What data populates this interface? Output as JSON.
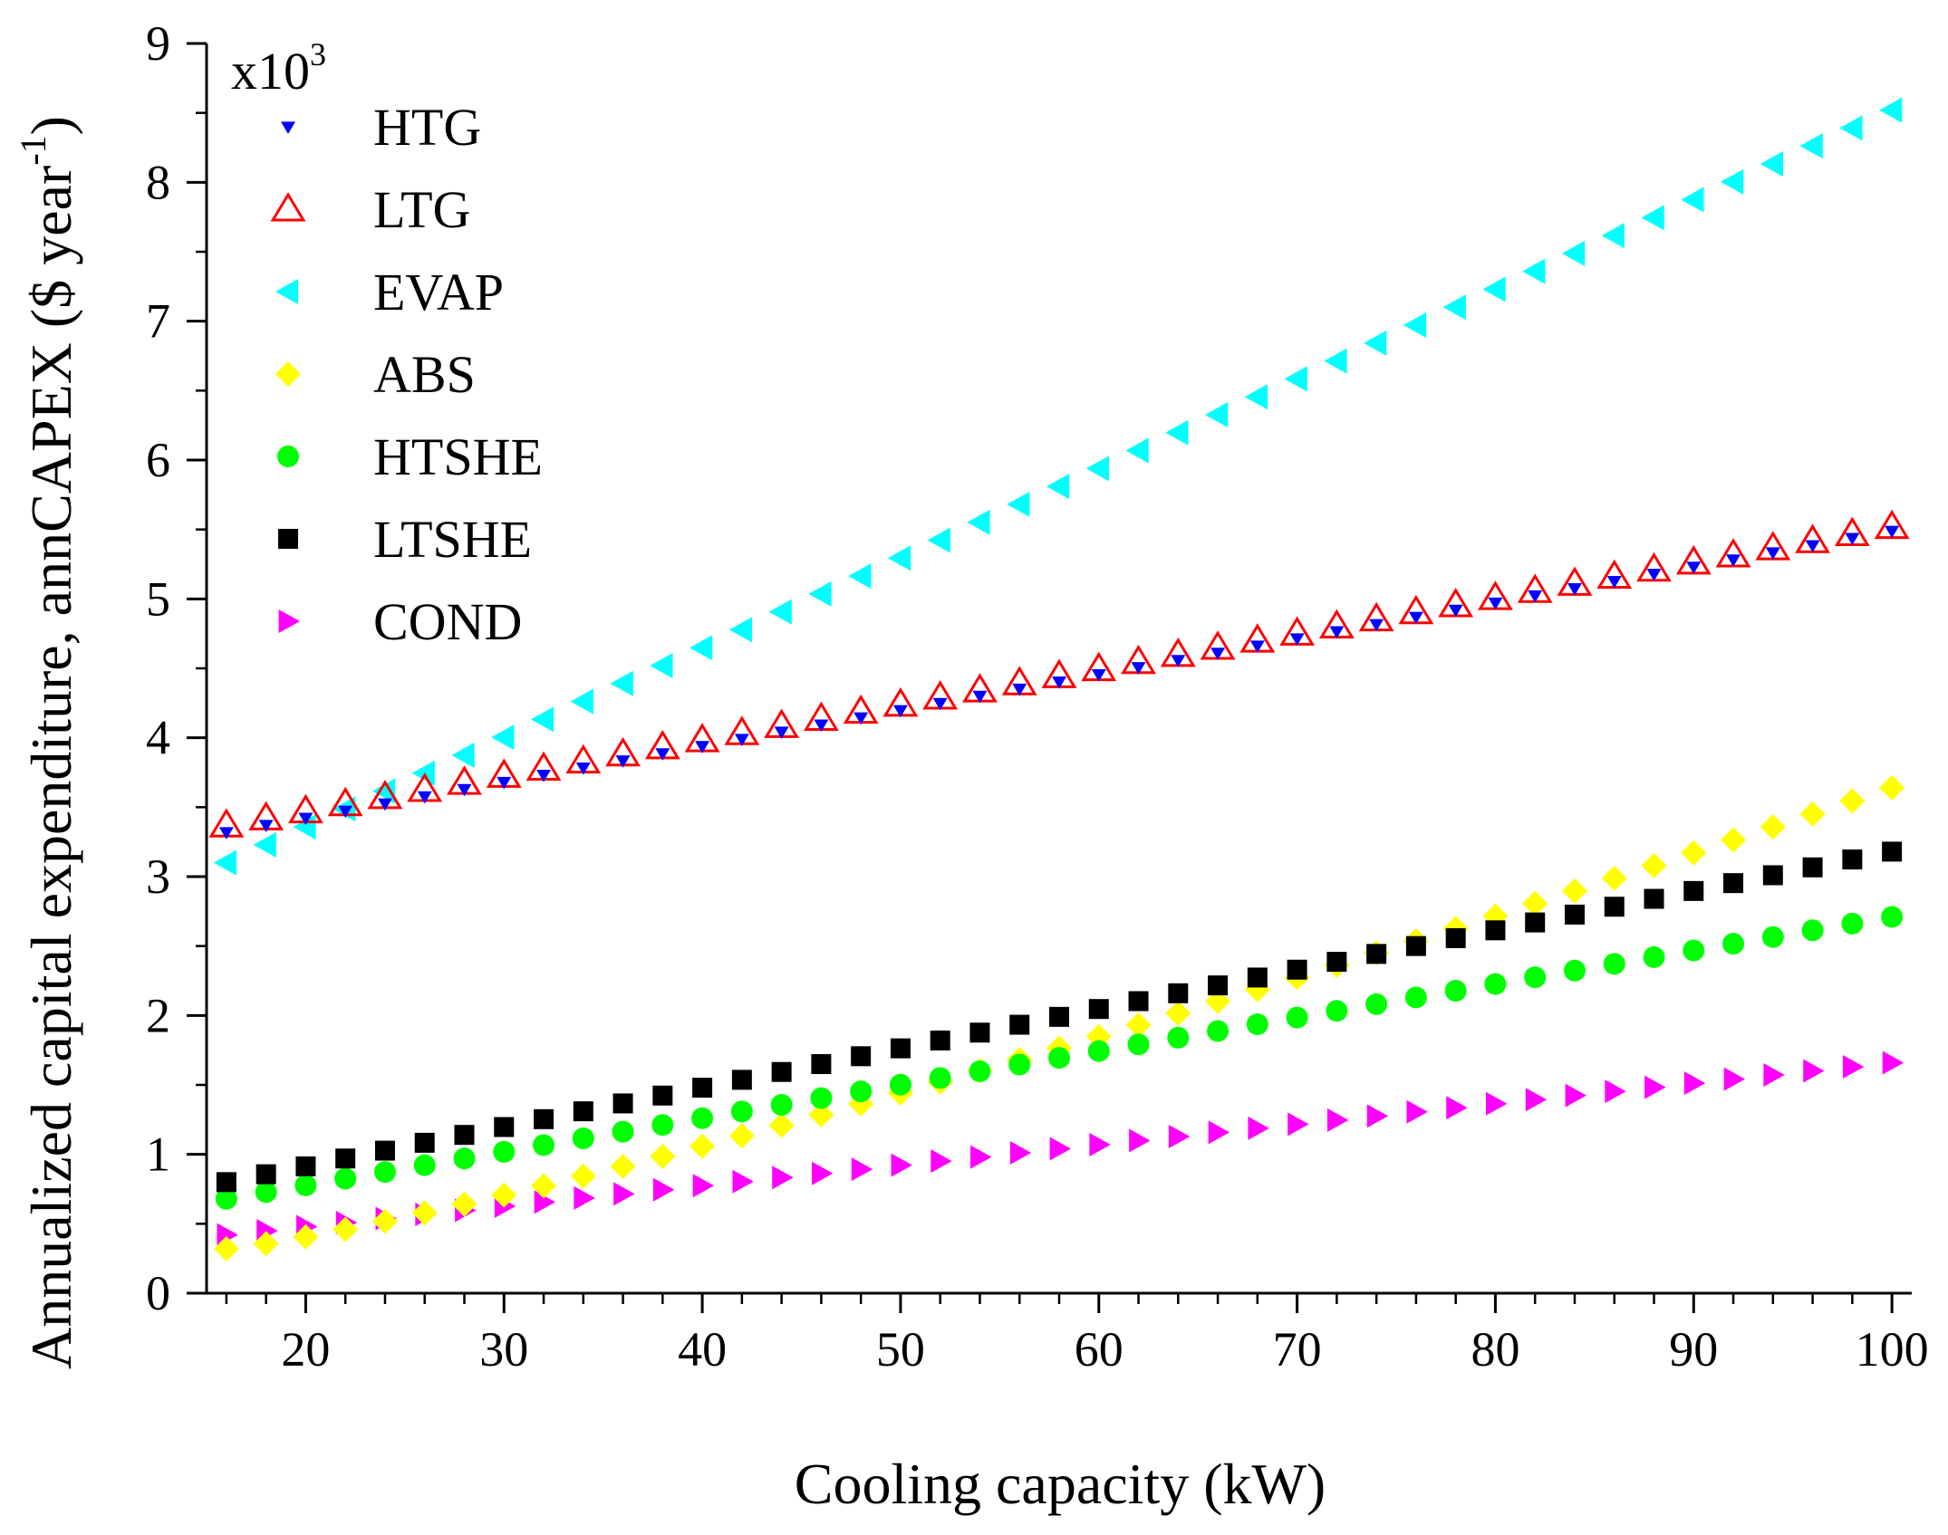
{
  "chart_data": {
    "type": "scatter",
    "title": "",
    "xlabel": "Cooling capacity (kW)",
    "ylabel_main": "Annualized capital expenditure, annCAPEX ($ year",
    "ylabel_sup": "-1",
    "ylabel_close": ")",
    "multiplier_base": "x10",
    "multiplier_exp": "3",
    "xlim": [
      15,
      101
    ],
    "ylim": [
      0,
      9
    ],
    "x_ticks": [
      20,
      30,
      40,
      50,
      60,
      70,
      80,
      90,
      100
    ],
    "y_ticks": [
      0,
      1,
      2,
      3,
      4,
      5,
      6,
      7,
      8,
      9
    ],
    "x": [
      16,
      18,
      20,
      22,
      24,
      26,
      28,
      30,
      32,
      34,
      36,
      38,
      40,
      42,
      44,
      46,
      48,
      50,
      52,
      54,
      56,
      58,
      60,
      62,
      64,
      66,
      68,
      70,
      72,
      74,
      76,
      78,
      80,
      82,
      84,
      86,
      88,
      90,
      92,
      94,
      96,
      98,
      100
    ],
    "legend_position": "top-left",
    "series": [
      {
        "name": "HTG",
        "color": "#0000ff",
        "marker": "triangle-down-small",
        "y_start": 3.32,
        "y_end": 5.49
      },
      {
        "name": "LTG",
        "color": "#ff0000",
        "marker": "triangle-up-open",
        "y_start": 3.37,
        "y_end": 5.52
      },
      {
        "name": "EVAP",
        "color": "#00ffff",
        "marker": "triangle-left",
        "y_start": 3.1,
        "y_end": 8.52
      },
      {
        "name": "ABS",
        "color": "#ffff00",
        "marker": "diamond",
        "y_start": 0.32,
        "y_end": 3.64,
        "curve": 1.2
      },
      {
        "name": "HTSHE",
        "color": "#00ff00",
        "marker": "circle",
        "y_start": 0.68,
        "y_end": 2.71
      },
      {
        "name": "LTSHE",
        "color": "#000000",
        "marker": "square",
        "y_start": 0.8,
        "y_end": 3.18
      },
      {
        "name": "COND",
        "color": "#ff00ff",
        "marker": "triangle-right",
        "y_start": 0.42,
        "y_end": 1.66
      }
    ]
  }
}
